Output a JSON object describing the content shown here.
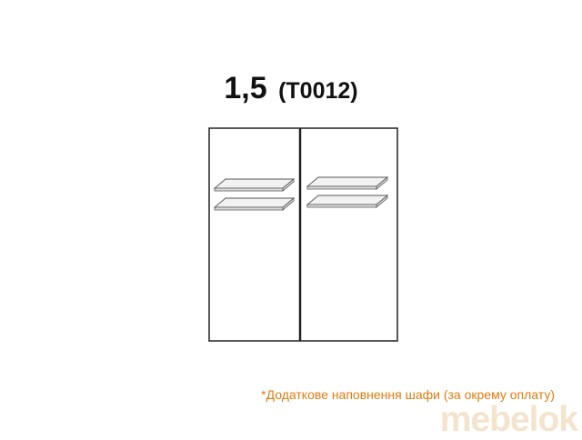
{
  "title": {
    "main": "1,5",
    "code": "(T0012)"
  },
  "note": {
    "text": "*Додаткове наповнення шафи (за окрему оплату)"
  },
  "watermark": {
    "text": "mebelok"
  },
  "colors": {
    "outline": "#222222",
    "shelf_fill": "#f2f2f2",
    "shelf_stroke": "#555555",
    "note": "#e07b10",
    "logo": "#d9a050"
  },
  "wardrobe": {
    "door_count": 2,
    "shelves_per_door": 2
  }
}
